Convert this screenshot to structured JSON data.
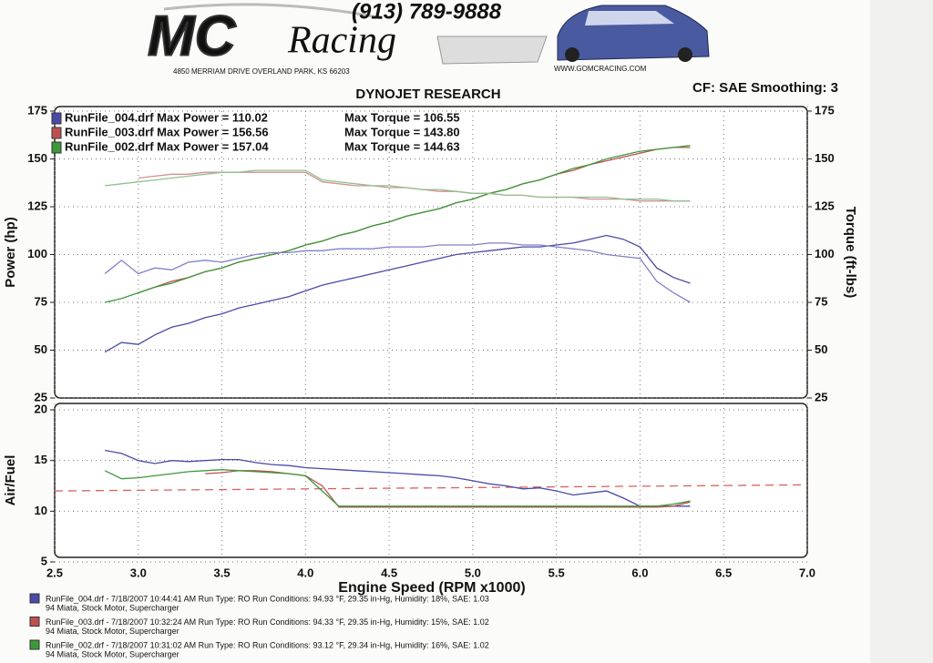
{
  "header": {
    "logo": "MC",
    "logo_script": "Racing",
    "phone": "(913) 789-9888",
    "address": "4850 MERRIAM DRIVE   OVERLAND PARK, KS 66203",
    "website": "WWW.GOMCRACING.COM"
  },
  "chart_data": [
    {
      "type": "line",
      "title": "DYNOJET RESEARCH",
      "subtitle": "CF: SAE  Smoothing: 3",
      "ylabel": "Power (hp)",
      "y2label": "Torque (ft-lbs)",
      "xlim": [
        2.5,
        7.0
      ],
      "xticks": [
        2.5,
        3,
        3.5,
        4,
        4.5,
        5,
        5.5,
        6,
        6.5,
        7
      ],
      "ylim": [
        25,
        175
      ],
      "yticks": [
        25,
        50,
        75,
        100,
        125,
        150,
        175
      ],
      "y2lim": [
        25,
        175
      ],
      "y2ticks": [
        25,
        50,
        75,
        100,
        125,
        150,
        175
      ],
      "grid": true,
      "x": [
        2.8,
        2.9,
        3.0,
        3.1,
        3.2,
        3.3,
        3.4,
        3.5,
        3.6,
        3.7,
        3.8,
        3.9,
        4.0,
        4.1,
        4.2,
        4.3,
        4.4,
        4.5,
        4.6,
        4.7,
        4.8,
        4.9,
        5.0,
        5.1,
        5.2,
        5.3,
        5.4,
        5.5,
        5.6,
        5.7,
        5.8,
        5.9,
        6.0,
        6.1,
        6.2,
        6.3
      ],
      "series": [
        {
          "name": "RunFile_004.drf Max Power = 110.02",
          "color": "#4a4aa8",
          "values": [
            49,
            54,
            53,
            58,
            62,
            64,
            67,
            69,
            72,
            74,
            76,
            78,
            81,
            84,
            86,
            88,
            90,
            92,
            94,
            96,
            98,
            100,
            101,
            102,
            103,
            104,
            104,
            105,
            106,
            108,
            110,
            108,
            104,
            93,
            88,
            85
          ]
        },
        {
          "name": "RunFile_003.drf Max Power = 156.56",
          "color": "#c05050",
          "values": [
            null,
            null,
            80,
            83,
            86,
            88,
            91,
            93,
            96,
            98,
            100,
            102,
            105,
            107,
            110,
            112,
            115,
            117,
            120,
            122,
            124,
            127,
            129,
            132,
            134,
            137,
            139,
            142,
            144,
            147,
            149,
            151,
            153,
            155,
            156,
            156
          ]
        },
        {
          "name": "RunFile_002.drf Max Power = 157.04",
          "color": "#3a9a3a",
          "values": [
            75,
            77,
            80,
            83,
            85,
            88,
            91,
            93,
            96,
            98,
            100,
            102,
            105,
            107,
            110,
            112,
            115,
            117,
            120,
            122,
            124,
            127,
            129,
            132,
            134,
            137,
            139,
            142,
            145,
            147,
            150,
            152,
            154,
            155,
            156,
            157
          ]
        },
        {
          "name": "Max Torque = 106.55",
          "color": "#8080c8",
          "axis": "y2",
          "values": [
            90,
            97,
            90,
            93,
            92,
            96,
            97,
            96,
            98,
            100,
            101,
            101,
            102,
            102,
            103,
            103,
            103,
            104,
            104,
            104,
            105,
            105,
            105,
            106,
            106,
            105,
            105,
            104,
            103,
            102,
            100,
            99,
            98,
            86,
            80,
            75
          ]
        },
        {
          "name": "Max Torque = 143.80",
          "color": "#d49090",
          "axis": "y2",
          "values": [
            null,
            null,
            140,
            141,
            142,
            142,
            143,
            143,
            143,
            143,
            143,
            143,
            143,
            138,
            137,
            136,
            136,
            135,
            135,
            134,
            133,
            133,
            132,
            132,
            131,
            131,
            130,
            130,
            130,
            129,
            129,
            129,
            128,
            128,
            128,
            128
          ]
        },
        {
          "name": "Max Torque = 144.63",
          "color": "#90c090",
          "axis": "y2",
          "values": [
            136,
            137,
            138,
            139,
            140,
            141,
            142,
            143,
            143,
            144,
            144,
            144,
            144,
            139,
            138,
            137,
            136,
            136,
            135,
            134,
            134,
            133,
            132,
            132,
            131,
            131,
            130,
            130,
            130,
            130,
            130,
            129,
            129,
            129,
            128,
            128
          ]
        }
      ]
    },
    {
      "type": "line",
      "ylabel": "Air/Fuel",
      "xlabel": "Engine Speed (RPM x1000)",
      "xlim": [
        2.5,
        7.0
      ],
      "xticks": [
        2.5,
        {
          "value": 3,
          "label": "3.0"
        },
        3.5,
        {
          "value": 4,
          "label": "4.0"
        },
        4.5,
        {
          "value": 5,
          "label": "5.0"
        },
        5.5,
        {
          "value": 6,
          "label": "6.0"
        },
        6.5,
        {
          "value": 7,
          "label": "7.0"
        }
      ],
      "ylim": [
        5,
        20
      ],
      "yticks": [
        5,
        10,
        15,
        20
      ],
      "grid": true,
      "reference_line": {
        "x": [
          2.5,
          7.0
        ],
        "values": [
          12,
          12.6
        ],
        "color": "#d86060"
      },
      "x": [
        2.8,
        2.9,
        3.0,
        3.1,
        3.2,
        3.3,
        3.4,
        3.5,
        3.6,
        3.7,
        3.8,
        3.9,
        4.0,
        4.1,
        4.2,
        4.3,
        4.4,
        4.5,
        4.6,
        4.7,
        4.8,
        4.9,
        5.0,
        5.1,
        5.2,
        5.3,
        5.4,
        5.5,
        5.6,
        5.7,
        5.8,
        5.9,
        6.0,
        6.1,
        6.2,
        6.3
      ],
      "series": [
        {
          "color": "#4a4aa8",
          "values": [
            16,
            15.7,
            15,
            14.7,
            15,
            14.9,
            15,
            15.1,
            15.1,
            14.8,
            14.6,
            14.5,
            14.3,
            14.2,
            14.1,
            14,
            13.9,
            13.8,
            13.7,
            13.6,
            13.5,
            13.3,
            13,
            12.7,
            12.5,
            12.2,
            12.3,
            12,
            11.6,
            11.8,
            12,
            11.3,
            10.5,
            10.5,
            10.5,
            10.5
          ]
        },
        {
          "color": "#c05050",
          "values": [
            null,
            null,
            null,
            null,
            null,
            null,
            13.7,
            13.8,
            14,
            14,
            13.9,
            13.7,
            13.5,
            12.5,
            10.4,
            10.4,
            10.4,
            10.4,
            10.4,
            10.4,
            10.4,
            10.4,
            10.4,
            10.4,
            10.4,
            10.4,
            10.4,
            10.4,
            10.4,
            10.4,
            10.4,
            10.4,
            10.4,
            10.4,
            10.5,
            10.9
          ]
        },
        {
          "color": "#3a9a3a",
          "values": [
            14,
            13.2,
            13.3,
            13.5,
            13.7,
            13.9,
            14,
            14.1,
            14,
            13.9,
            13.8,
            13.7,
            13.5,
            12,
            10.5,
            10.5,
            10.5,
            10.5,
            10.5,
            10.5,
            10.5,
            10.5,
            10.5,
            10.5,
            10.5,
            10.5,
            10.5,
            10.5,
            10.5,
            10.5,
            10.5,
            10.5,
            10.5,
            10.5,
            10.7,
            11
          ]
        }
      ]
    }
  ],
  "footer": [
    {
      "color": "#4a4aa8",
      "line1": "RunFile_004.drf - 7/18/2007 10:44:41 AM  Run Type: RO  Run Conditions: 94.93 °F, 29.35 in-Hg,  Humidity: 18%, SAE: 1.03",
      "line2": "94 Miata, Stock Motor, Supercharger"
    },
    {
      "color": "#c05050",
      "line1": "RunFile_003.drf - 7/18/2007 10:32:24 AM  Run Type: RO  Run Conditions: 94.33 °F, 29.35 in-Hg,  Humidity: 15%, SAE: 1.02",
      "line2": "94 Miata, Stock Motor, Supercharger"
    },
    {
      "color": "#3a9a3a",
      "line1": "RunFile_002.drf - 7/18/2007 10:31:02 AM  Run Type: RO  Run Conditions: 93.12 °F, 29.34 in-Hg,  Humidity: 16%, SAE: 1.02",
      "line2": "94 Miata, Stock Motor, Supercharger"
    }
  ]
}
